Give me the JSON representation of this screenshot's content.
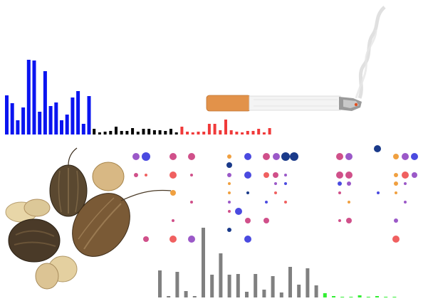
{
  "figure": {
    "colors": {
      "bars_top_left": "#0a14f0",
      "bars_top_mid": "#000000",
      "bars_top_right": "#f03a3a",
      "bars_bottom": "#808080",
      "bars_bottom_right": "#33ee33",
      "dot_purple": "#9b59c8",
      "dot_pink": "#d0508a",
      "dot_red": "#f06060",
      "dot_blue": "#4a4ae0",
      "dot_navy": "#1a3a8a",
      "dot_orange": "#f0a040"
    },
    "images": [
      "cigarette",
      "seed-pods"
    ]
  },
  "chart_data": [
    {
      "type": "bar",
      "values": [
        55,
        44,
        20,
        38,
        105,
        104,
        32,
        89,
        40,
        45,
        20,
        28,
        52,
        61,
        15,
        54,
        8,
        3,
        4,
        5,
        11,
        5,
        5,
        9,
        4,
        8,
        8,
        6,
        6,
        5,
        8,
        3,
        11,
        4,
        3,
        4,
        4,
        15,
        15,
        6,
        21,
        6,
        4,
        3,
        5,
        5,
        8,
        3,
        9
      ]
    },
    {
      "type": "scatter"
    },
    {
      "type": "bar",
      "values": [
        38,
        2,
        36,
        9,
        2,
        98,
        32,
        62,
        32,
        33,
        8,
        33,
        11,
        30,
        7,
        43,
        18,
        41,
        17,
        6,
        2,
        1,
        1,
        3,
        1,
        2,
        1,
        1
      ]
    }
  ]
}
